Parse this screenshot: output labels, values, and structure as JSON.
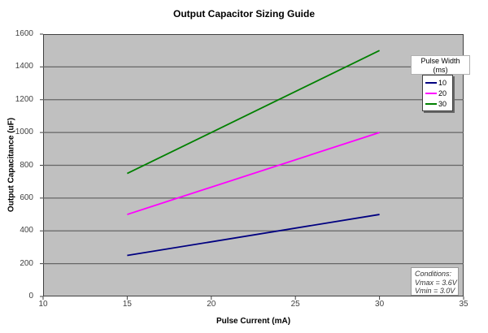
{
  "chart_data": {
    "type": "line",
    "title": "Output Capacitor Sizing Guide",
    "xlabel": "Pulse Current (mA)",
    "ylabel": "Output Capacitance (uF)",
    "xlim": [
      10,
      35
    ],
    "ylim": [
      0,
      1600
    ],
    "x_ticks": [
      10,
      15,
      20,
      25,
      30,
      35
    ],
    "y_ticks": [
      0,
      200,
      400,
      600,
      800,
      1000,
      1200,
      1400,
      1600
    ],
    "grid": "horizontal",
    "plot_background_color": "#c0c0c0",
    "gridline_color": "#666666",
    "axis_color": "#404040",
    "series": [
      {
        "name": "10",
        "color": "#000080",
        "x": [
          15,
          30
        ],
        "values": [
          250,
          500
        ]
      },
      {
        "name": "20",
        "color": "#ff00ff",
        "x": [
          15,
          30
        ],
        "values": [
          500,
          1000
        ]
      },
      {
        "name": "30",
        "color": "#008000",
        "x": [
          15,
          30
        ],
        "values": [
          750,
          1500
        ]
      }
    ],
    "legend": {
      "title_line1": "Pulse Width",
      "title_line2": "(ms)",
      "position": "right-top"
    },
    "annotation": {
      "lines": [
        "Conditions:",
        "Vmax = 3.6V",
        "Vmin = 3.0V"
      ]
    }
  }
}
